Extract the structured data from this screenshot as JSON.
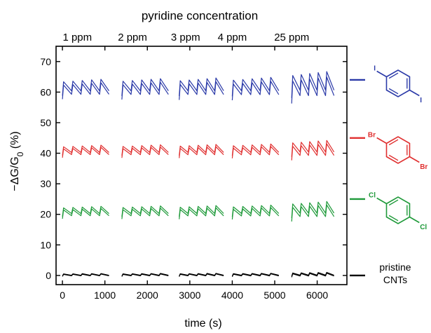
{
  "chart_data": {
    "type": "line",
    "title": "pyridine concentration",
    "xlabel": "time (s)",
    "ylabel_main": "−ΔG/G",
    "ylabel_sub": "0",
    "ylabel_unit": " (%)",
    "xlim": [
      -150,
      6700
    ],
    "ylim": [
      -3,
      75
    ],
    "x_ticks": [
      0,
      1000,
      2000,
      3000,
      4000,
      5000,
      6000
    ],
    "y_ticks": [
      0,
      10,
      20,
      30,
      40,
      50,
      60,
      70
    ],
    "concentrations": [
      {
        "label": "1 ppm",
        "x": 350
      },
      {
        "label": "2 ppm",
        "x": 1650
      },
      {
        "label": "3 ppm",
        "x": 2900
      },
      {
        "label": "4 ppm",
        "x": 4000
      },
      {
        "label": "25 ppm",
        "x": 5400
      }
    ],
    "segments": [
      {
        "x0": 0,
        "x1": 1100,
        "pulses": 5,
        "amp": 1.0
      },
      {
        "x0": 1400,
        "x1": 2500,
        "pulses": 5,
        "amp": 1.05
      },
      {
        "x0": 2750,
        "x1": 3800,
        "pulses": 5,
        "amp": 1.1
      },
      {
        "x0": 4000,
        "x1": 5100,
        "pulses": 5,
        "amp": 1.15
      },
      {
        "x0": 5400,
        "x1": 6400,
        "pulses": 5,
        "amp": 1.6
      }
    ],
    "series": [
      {
        "name": "I",
        "color": "#2b3aa8",
        "baseline": 60,
        "pulse_height": 4.0,
        "label_y": 64
      },
      {
        "name": "Br",
        "color": "#e03030",
        "baseline": 40,
        "pulse_height": 2.5,
        "label_y": 45
      },
      {
        "name": "Cl",
        "color": "#1f9a3a",
        "baseline": 20,
        "pulse_height": 2.5,
        "label_y": 25
      },
      {
        "name": "pristine CNTs",
        "color": "#000000",
        "baseline": 0,
        "pulse_height": 0.6,
        "label_y": 0
      }
    ],
    "grid": false,
    "legend": "right"
  },
  "molecules": [
    {
      "color": "#2b3aa8",
      "substituents": [
        "I",
        "I"
      ]
    },
    {
      "color": "#e03030",
      "substituents": [
        "Br",
        "Br"
      ]
    },
    {
      "color": "#1f9a3a",
      "substituents": [
        "Cl",
        "Cl"
      ]
    }
  ],
  "pristine_label": [
    "pristine",
    "CNTs"
  ]
}
